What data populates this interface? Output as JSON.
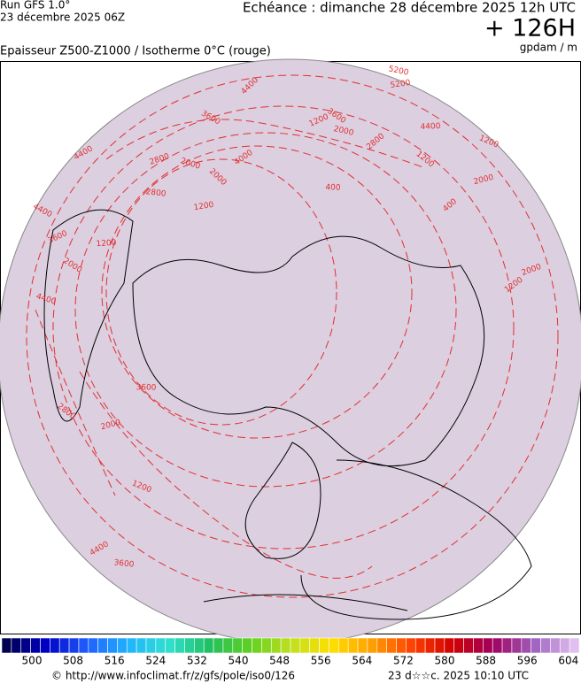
{
  "header": {
    "run": "Run GFS 1.0°",
    "run_date": "23 décembre 2025 06Z",
    "valid": "Echéance : dimanche 28 décembre 2025 12h UTC",
    "lead": "+ 126H",
    "product": "Epaisseur Z500-Z1000 / Isotherme 0°C (rouge)",
    "units": "gpdam / m"
  },
  "map": {
    "contour_labels": [
      "4400",
      "5200",
      "3600",
      "1200",
      "2000",
      "2800",
      "4400",
      "3600",
      "2800",
      "2000",
      "4000",
      "400",
      "1200",
      "2000",
      "1200",
      "4400",
      "2800",
      "2000",
      "1200",
      "4400",
      "3600",
      "5200",
      "400",
      "1200",
      "2000",
      "2000",
      "4400",
      "1200",
      "3600",
      "2800",
      "2000",
      "1200",
      "4400",
      "3600"
    ]
  },
  "colorbar": {
    "labels": [
      "500",
      "508",
      "516",
      "524",
      "532",
      "540",
      "548",
      "556",
      "564",
      "572",
      "580",
      "588",
      "596",
      "604"
    ],
    "colors": [
      "#000050",
      "#0000c8",
      "#2060ff",
      "#20b4ff",
      "#30e0d0",
      "#20c060",
      "#60d020",
      "#c0e020",
      "#ffe000",
      "#ffa000",
      "#ff4000",
      "#d00000",
      "#a00060",
      "#a060c0",
      "#e0c0f0"
    ]
  },
  "footer": {
    "source": "© http://www.infoclimat.fr/z/gfs/pole/iso0/126",
    "stamp": "23 d☆☆c. 2025 10:10 UTC"
  }
}
